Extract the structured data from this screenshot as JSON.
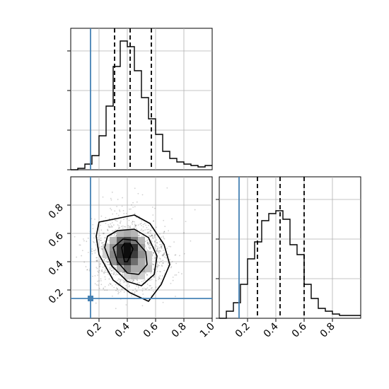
{
  "chart_data": {
    "type": "corner",
    "parameters": [
      "",
      ""
    ],
    "truths": [
      0.14,
      0.14
    ],
    "colors": {
      "histogram": "#000000",
      "quantile": "#000000",
      "truth": "#4682b4",
      "grid": "#b0b0b0",
      "hist2d_dark": "#000000"
    },
    "grid": true,
    "panels": [
      {
        "id": "hist-param-1",
        "type": "histogram",
        "xlim": [
          0.0,
          1.0
        ],
        "ylim": [
          0,
          1.0
        ],
        "yticks": [
          0.0,
          0.28,
          0.56,
          0.84
        ],
        "bin_edges": [
          0.0,
          0.05,
          0.1,
          0.15,
          0.2,
          0.25,
          0.3,
          0.35,
          0.4,
          0.45,
          0.5,
          0.55,
          0.6,
          0.65,
          0.7,
          0.75,
          0.8,
          0.85,
          0.9,
          0.95,
          1.0
        ],
        "bin_counts": [
          0.0,
          0.01,
          0.04,
          0.1,
          0.24,
          0.45,
          0.73,
          0.91,
          0.87,
          0.7,
          0.51,
          0.36,
          0.25,
          0.13,
          0.08,
          0.055,
          0.04,
          0.03,
          0.02,
          0.03
        ],
        "quantiles": [
          0.31,
          0.42,
          0.57
        ],
        "truth": 0.14
      },
      {
        "id": "hist-param-2",
        "type": "histogram",
        "xlim": [
          0.0,
          1.0
        ],
        "ylim": [
          0,
          1.0
        ],
        "yticks": [
          0.0,
          0.28,
          0.56,
          0.84
        ],
        "bin_edges": [
          0.0,
          0.05,
          0.1,
          0.15,
          0.2,
          0.25,
          0.3,
          0.35,
          0.4,
          0.45,
          0.5,
          0.55,
          0.6,
          0.65,
          0.7,
          0.75,
          0.8,
          0.85,
          0.9,
          0.95,
          1.0
        ],
        "bin_counts": [
          0.0,
          0.05,
          0.11,
          0.24,
          0.42,
          0.54,
          0.69,
          0.74,
          0.76,
          0.7,
          0.52,
          0.45,
          0.24,
          0.14,
          0.07,
          0.05,
          0.03,
          0.02,
          0.02,
          0.02
        ],
        "quantiles": [
          0.27,
          0.43,
          0.6
        ],
        "truth": 0.14
      },
      {
        "id": "joint-param-1-2",
        "type": "hist2d",
        "xlim": [
          0.0,
          1.0
        ],
        "ylim": [
          0.0,
          1.0
        ],
        "xticks": [
          0.2,
          0.4,
          0.6,
          0.8,
          1.0
        ],
        "xtick_labels": [
          "0.2",
          "0.4",
          "0.6",
          "0.8",
          "1.0"
        ],
        "yticks": [
          0.2,
          0.4,
          0.6,
          0.8
        ],
        "ytick_labels": [
          "0.2",
          "0.4",
          "0.6",
          "0.8"
        ],
        "truth_point": [
          0.14,
          0.14
        ],
        "density_center": [
          0.4,
          0.46
        ],
        "contours": [
          [
            [
              0.3,
              0.7
            ],
            [
              0.45,
              0.73
            ],
            [
              0.56,
              0.67
            ],
            [
              0.66,
              0.52
            ],
            [
              0.7,
              0.38
            ],
            [
              0.64,
              0.24
            ],
            [
              0.55,
              0.12
            ],
            [
              0.42,
              0.18
            ],
            [
              0.3,
              0.27
            ],
            [
              0.2,
              0.45
            ],
            [
              0.18,
              0.58
            ],
            [
              0.2,
              0.68
            ]
          ],
          [
            [
              0.33,
              0.62
            ],
            [
              0.45,
              0.63
            ],
            [
              0.55,
              0.57
            ],
            [
              0.61,
              0.44
            ],
            [
              0.59,
              0.31
            ],
            [
              0.5,
              0.23
            ],
            [
              0.4,
              0.26
            ],
            [
              0.29,
              0.37
            ],
            [
              0.24,
              0.5
            ],
            [
              0.26,
              0.58
            ]
          ],
          [
            [
              0.37,
              0.56
            ],
            [
              0.46,
              0.55
            ],
            [
              0.53,
              0.47
            ],
            [
              0.54,
              0.38
            ],
            [
              0.48,
              0.31
            ],
            [
              0.4,
              0.32
            ],
            [
              0.33,
              0.4
            ],
            [
              0.3,
              0.5
            ]
          ],
          [
            [
              0.38,
              0.53
            ],
            [
              0.42,
              0.53
            ],
            [
              0.44,
              0.49
            ],
            [
              0.42,
              0.44
            ],
            [
              0.4,
              0.4
            ],
            [
              0.38,
              0.4
            ],
            [
              0.37,
              0.45
            ],
            [
              0.36,
              0.5
            ]
          ]
        ],
        "density_cells": [
          [
            0.35,
            0.35,
            0.3
          ],
          [
            0.4,
            0.35,
            0.55
          ],
          [
            0.45,
            0.35,
            0.35
          ],
          [
            0.3,
            0.4,
            0.45
          ],
          [
            0.35,
            0.4,
            0.75
          ],
          [
            0.4,
            0.4,
            0.85
          ],
          [
            0.45,
            0.4,
            0.6
          ],
          [
            0.5,
            0.4,
            0.35
          ],
          [
            0.3,
            0.45,
            0.5
          ],
          [
            0.35,
            0.45,
            0.85
          ],
          [
            0.4,
            0.45,
            1.0
          ],
          [
            0.45,
            0.45,
            0.8
          ],
          [
            0.5,
            0.45,
            0.45
          ],
          [
            0.3,
            0.5,
            0.45
          ],
          [
            0.35,
            0.5,
            0.85
          ],
          [
            0.4,
            0.5,
            1.0
          ],
          [
            0.45,
            0.5,
            0.85
          ],
          [
            0.5,
            0.5,
            0.4
          ],
          [
            0.3,
            0.55,
            0.3
          ],
          [
            0.35,
            0.55,
            0.65
          ],
          [
            0.4,
            0.55,
            0.75
          ],
          [
            0.45,
            0.55,
            0.55
          ],
          [
            0.5,
            0.55,
            0.3
          ],
          [
            0.35,
            0.6,
            0.3
          ],
          [
            0.4,
            0.6,
            0.35
          ],
          [
            0.45,
            0.6,
            0.3
          ],
          [
            0.25,
            0.45,
            0.2
          ],
          [
            0.25,
            0.5,
            0.2
          ],
          [
            0.55,
            0.4,
            0.2
          ],
          [
            0.55,
            0.45,
            0.2
          ],
          [
            0.45,
            0.3,
            0.25
          ],
          [
            0.5,
            0.3,
            0.2
          ],
          [
            0.4,
            0.3,
            0.2
          ],
          [
            0.5,
            0.35,
            0.35
          ],
          [
            0.55,
            0.35,
            0.25
          ]
        ]
      }
    ]
  }
}
